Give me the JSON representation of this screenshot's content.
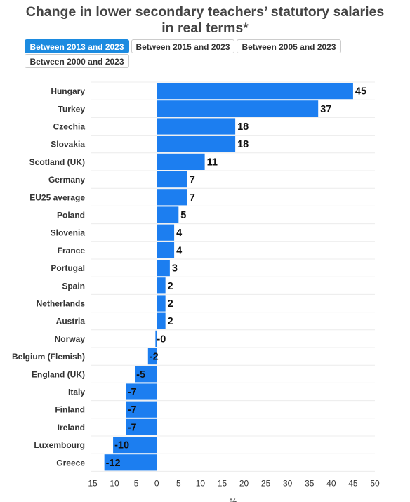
{
  "header": {
    "title_line1": "Change in lower secondary teachers’ statutory salaries",
    "title_line2": "in real terms*"
  },
  "tabs": [
    {
      "label": "Between 2013 and 2023",
      "active": true
    },
    {
      "label": "Between 2015 and 2023",
      "active": false
    },
    {
      "label": "Between 2005 and 2023",
      "active": false
    },
    {
      "label": "Between 2000 and 2023",
      "active": false
    }
  ],
  "colors": {
    "bar": "#1c7ef0",
    "active_tab": "#1c8be0"
  },
  "chart_data": {
    "type": "bar",
    "orientation": "horizontal",
    "categories": [
      "Hungary",
      "Turkey",
      "Czechia",
      "Slovakia",
      "Scotland (UK)",
      "Germany",
      "EU25 average",
      "Poland",
      "Slovenia",
      "France",
      "Portugal",
      "Spain",
      "Netherlands",
      "Austria",
      "Norway",
      "Belgium (Flemish)",
      "England (UK)",
      "Italy",
      "Finland",
      "Ireland",
      "Luxembourg",
      "Greece"
    ],
    "values": [
      45,
      37,
      18,
      18,
      11,
      7,
      7,
      5,
      4,
      4,
      3,
      2,
      2,
      2,
      -0.3,
      -2,
      -5,
      -7,
      -7,
      -7,
      -10,
      -12
    ],
    "value_labels": [
      "45",
      "37",
      "18",
      "18",
      "11",
      "7",
      "7",
      "5",
      "4",
      "4",
      "3",
      "2",
      "2",
      "2",
      "-0",
      "-2",
      "-5",
      "-7",
      "-7",
      "-7",
      "-10",
      "-12"
    ],
    "xlim": [
      -15,
      50
    ],
    "xticks": [
      -15,
      -10,
      -5,
      0,
      5,
      10,
      15,
      20,
      25,
      30,
      35,
      40,
      45,
      50
    ],
    "xlabel": "%",
    "grid": true
  }
}
